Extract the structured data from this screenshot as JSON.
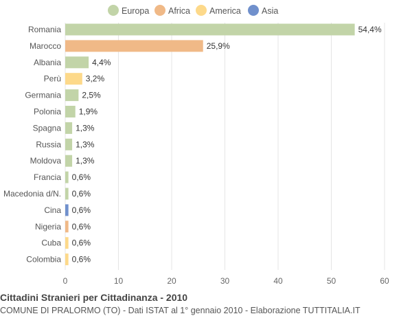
{
  "chart_data": {
    "type": "bar",
    "orientation": "horizontal",
    "title": "Cittadini Stranieri per Cittadinanza - 2010",
    "subtitle": "COMUNE DI PRALORMO (TO) - Dati ISTAT al 1° gennaio 2010 - Elaborazione TUTTITALIA.IT",
    "xlabel": "",
    "ylabel": "",
    "xlim": [
      0,
      60
    ],
    "xticks": [
      0,
      10,
      20,
      30,
      40,
      50,
      60
    ],
    "grid": true,
    "legend_position": "top-center",
    "legend": [
      {
        "name": "Europa",
        "color": "#c2d4a8"
      },
      {
        "name": "Africa",
        "color": "#f0b987"
      },
      {
        "name": "America",
        "color": "#fdd98a"
      },
      {
        "name": "Asia",
        "color": "#7090cc"
      }
    ],
    "categories": [
      "Romania",
      "Marocco",
      "Albania",
      "Perù",
      "Germania",
      "Polonia",
      "Spagna",
      "Russia",
      "Moldova",
      "Francia",
      "Macedonia d/N.",
      "Cina",
      "Nigeria",
      "Cuba",
      "Colombia"
    ],
    "values": [
      54.4,
      25.9,
      4.4,
      3.2,
      2.5,
      1.9,
      1.3,
      1.3,
      1.3,
      0.6,
      0.6,
      0.6,
      0.6,
      0.6,
      0.6
    ],
    "value_labels": [
      "54,4%",
      "25,9%",
      "4,4%",
      "3,2%",
      "2,5%",
      "1,9%",
      "1,3%",
      "1,3%",
      "1,3%",
      "0,6%",
      "0,6%",
      "0,6%",
      "0,6%",
      "0,6%",
      "0,6%"
    ],
    "groups": [
      "Europa",
      "Africa",
      "Europa",
      "America",
      "Europa",
      "Europa",
      "Europa",
      "Europa",
      "Europa",
      "Europa",
      "Europa",
      "Asia",
      "Africa",
      "America",
      "America"
    ]
  }
}
